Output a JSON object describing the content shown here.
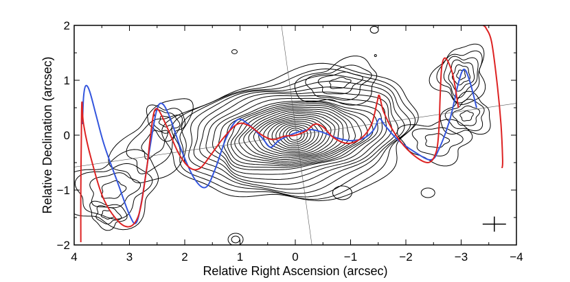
{
  "chart_data": {
    "type": "contour",
    "xlabel": "Relative Right Ascension (arcsec)",
    "ylabel": "Relative Declination (arcsec)",
    "xlim": [
      4,
      -4
    ],
    "ylim": [
      -2,
      2
    ],
    "x_ticks": [
      4,
      3,
      2,
      1,
      0,
      -1,
      -2,
      -3,
      -4
    ],
    "x_tick_labels": [
      "4",
      "3",
      "2",
      "1",
      "0",
      "−1",
      "−2",
      "−3",
      "−4"
    ],
    "y_ticks": [
      -2,
      -1,
      0,
      1,
      2
    ],
    "y_tick_labels": [
      "−2",
      "−1",
      "0",
      "1",
      "2"
    ],
    "contour_center": [
      0,
      0
    ],
    "contour_color": "#000000",
    "reference_lines": [
      {
        "points": [
          [
            0.25,
            2.0
          ],
          [
            -0.3,
            -2.0
          ]
        ]
      },
      {
        "points": [
          [
            4.0,
            -0.58
          ],
          [
            -4.0,
            0.58
          ]
        ]
      }
    ],
    "beam_marker": {
      "x": -3.6,
      "y": -1.62,
      "symbol": "cross"
    },
    "series": [
      {
        "color": "#3355dd",
        "points": [
          [
            3.85,
            0.2
          ],
          [
            3.83,
            0.7
          ],
          [
            3.79,
            0.9
          ],
          [
            3.72,
            0.8
          ],
          [
            3.6,
            0.35
          ],
          [
            3.45,
            -0.2
          ],
          [
            3.2,
            -0.9
          ],
          [
            3.0,
            -1.45
          ],
          [
            2.88,
            -1.6
          ],
          [
            2.78,
            -1.2
          ],
          [
            2.65,
            -0.35
          ],
          [
            2.52,
            0.4
          ],
          [
            2.42,
            0.58
          ],
          [
            2.28,
            0.35
          ],
          [
            2.05,
            -0.3
          ],
          [
            1.82,
            -0.8
          ],
          [
            1.62,
            -0.95
          ],
          [
            1.45,
            -0.62
          ],
          [
            1.25,
            -0.05
          ],
          [
            1.05,
            0.28
          ],
          [
            0.85,
            0.2
          ],
          [
            0.6,
            -0.05
          ],
          [
            0.45,
            -0.22
          ],
          [
            0.3,
            -0.1
          ],
          [
            0.1,
            0.0
          ],
          [
            -0.1,
            0.07
          ],
          [
            -0.3,
            0.1
          ],
          [
            -0.5,
            0.05
          ],
          [
            -0.75,
            -0.05
          ],
          [
            -1.0,
            -0.1
          ],
          [
            -1.25,
            -0.05
          ],
          [
            -1.42,
            0.1
          ],
          [
            -1.52,
            0.3
          ],
          [
            -1.62,
            0.18
          ],
          [
            -1.85,
            -0.08
          ],
          [
            -2.15,
            -0.3
          ],
          [
            -2.45,
            -0.45
          ],
          [
            -2.6,
            -0.25
          ],
          [
            -2.8,
            0.3
          ],
          [
            -2.95,
            0.95
          ],
          [
            -3.05,
            1.2
          ],
          [
            -3.15,
            1.0
          ],
          [
            -3.28,
            0.5
          ]
        ]
      },
      {
        "color": "#dd2222",
        "points": [
          [
            3.88,
            -1.95
          ],
          [
            3.88,
            -1.0
          ],
          [
            3.87,
            0.0
          ],
          [
            3.86,
            0.6
          ],
          [
            3.83,
            0.2
          ],
          [
            3.7,
            -0.4
          ],
          [
            3.45,
            -1.2
          ],
          [
            3.1,
            -1.65
          ],
          [
            2.85,
            -1.5
          ],
          [
            2.7,
            -0.7
          ],
          [
            2.63,
            -0.1
          ],
          [
            2.57,
            0.35
          ],
          [
            2.52,
            0.48
          ],
          [
            2.45,
            0.42
          ],
          [
            2.3,
            0.1
          ],
          [
            2.1,
            -0.35
          ],
          [
            1.9,
            -0.6
          ],
          [
            1.72,
            -0.6
          ],
          [
            1.52,
            -0.35
          ],
          [
            1.3,
            -0.05
          ],
          [
            1.05,
            0.2
          ],
          [
            0.85,
            0.18
          ],
          [
            0.6,
            0.0
          ],
          [
            0.4,
            -0.08
          ],
          [
            0.2,
            -0.02
          ],
          [
            0.0,
            0.0
          ],
          [
            -0.2,
            0.08
          ],
          [
            -0.35,
            0.2
          ],
          [
            -0.5,
            0.15
          ],
          [
            -0.7,
            -0.05
          ],
          [
            -0.95,
            -0.15
          ],
          [
            -1.2,
            -0.05
          ],
          [
            -1.38,
            0.2
          ],
          [
            -1.48,
            0.6
          ],
          [
            -1.52,
            0.72
          ],
          [
            -1.6,
            0.42
          ],
          [
            -1.82,
            0.0
          ],
          [
            -2.1,
            -0.33
          ],
          [
            -2.4,
            -0.5
          ],
          [
            -2.55,
            -0.3
          ],
          [
            -2.6,
            0.15
          ],
          [
            -2.62,
            0.7
          ],
          [
            -2.65,
            1.25
          ],
          [
            -2.72,
            1.4
          ],
          [
            -2.85,
            1.1
          ],
          [
            -2.95,
            0.5
          ]
        ]
      },
      {
        "color": "#dd2222",
        "points": [
          [
            -3.4,
            2.0
          ],
          [
            -3.45,
            1.95
          ],
          [
            -3.55,
            1.7
          ],
          [
            -3.65,
            0.95
          ],
          [
            -3.72,
            0.2
          ],
          [
            -3.75,
            -0.45
          ],
          [
            -3.74,
            -0.6
          ]
        ]
      }
    ]
  }
}
